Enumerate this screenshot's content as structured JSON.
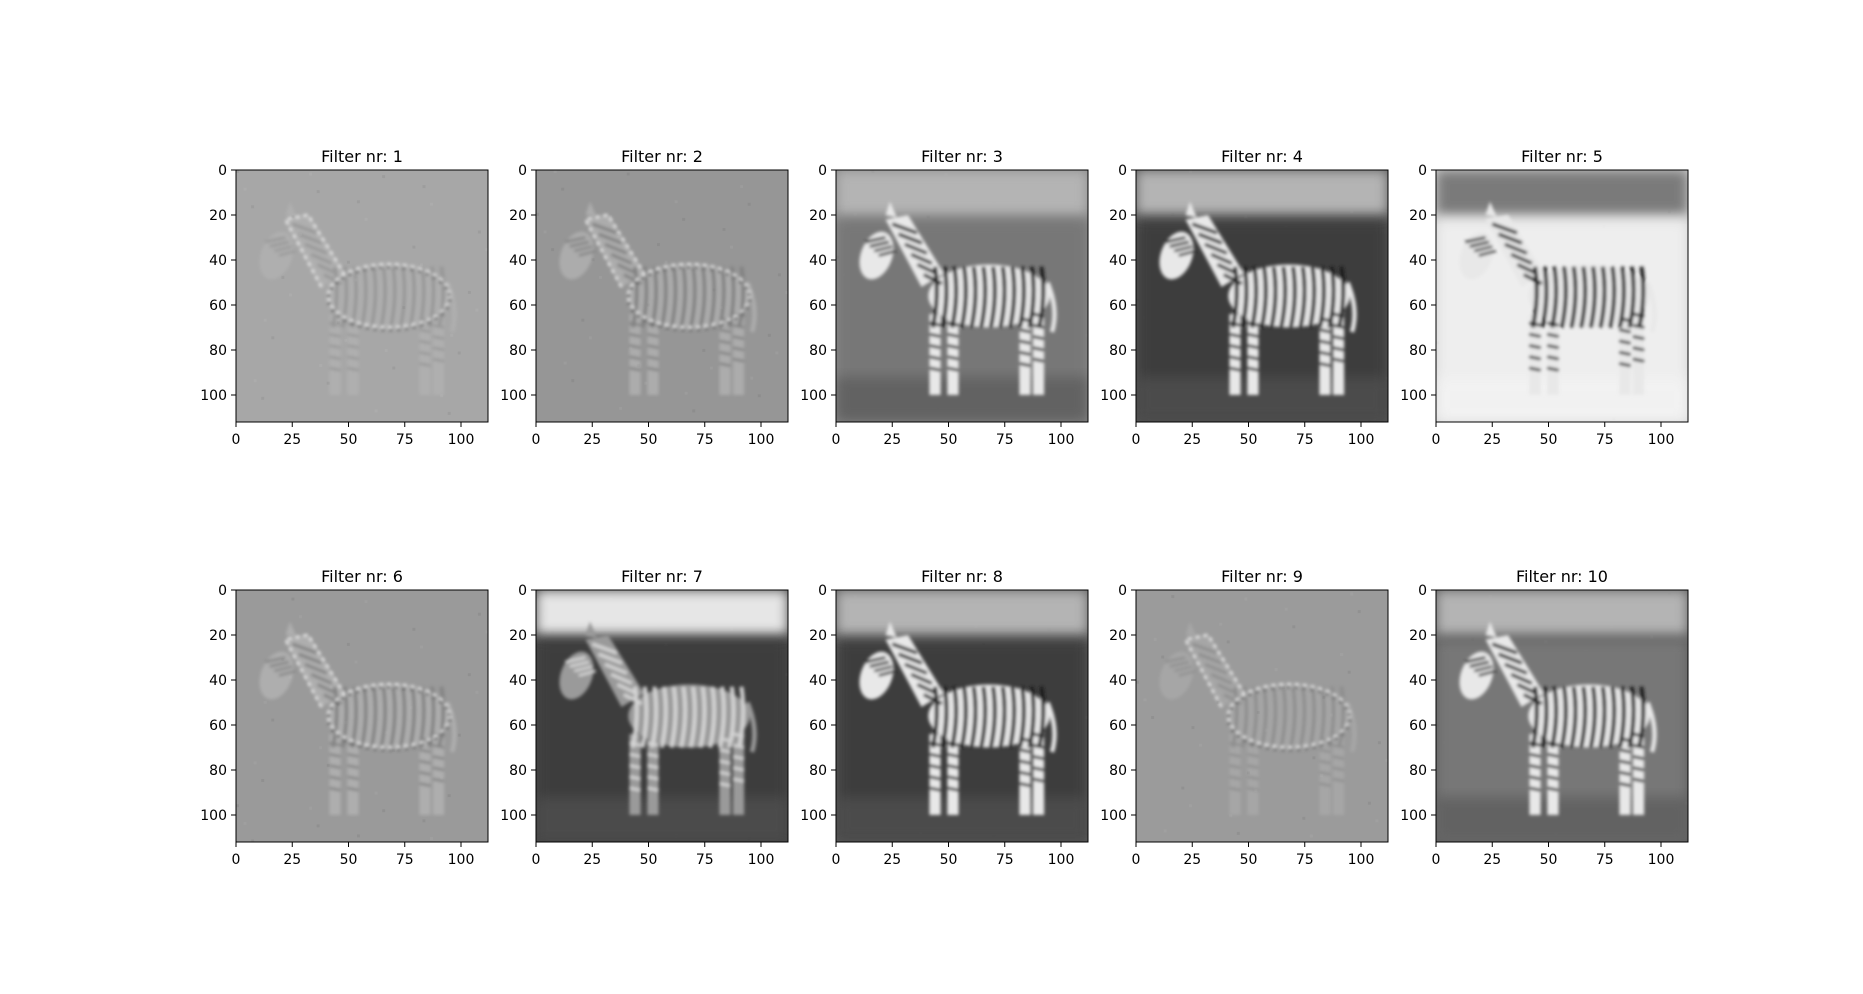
{
  "chart_data": {
    "type": "image-grid",
    "rows": 2,
    "cols": 5,
    "image_size": 112,
    "colormap": "gray",
    "xlim": [
      0,
      112
    ],
    "ylim": [
      112,
      0
    ],
    "x_ticks": [
      0,
      25,
      50,
      75,
      100
    ],
    "y_ticks": [
      0,
      20,
      40,
      60,
      80,
      100
    ],
    "panels": [
      {
        "title": "Filter nr: 1",
        "style": "edge",
        "bg": "#a7a7a7"
      },
      {
        "title": "Filter nr: 2",
        "style": "emboss",
        "bg": "#969696"
      },
      {
        "title": "Filter nr: 3",
        "style": "photo",
        "bg": "#8a8a8a"
      },
      {
        "title": "Filter nr: 4",
        "style": "photo-contrast",
        "bg": "#5a5a5a"
      },
      {
        "title": "Filter nr: 5",
        "style": "bright",
        "bg": "#d2d2d2"
      },
      {
        "title": "Filter nr: 6",
        "style": "emboss",
        "bg": "#9a9a9a"
      },
      {
        "title": "Filter nr: 7",
        "style": "inverted",
        "bg": "#4a4a4a"
      },
      {
        "title": "Filter nr: 8",
        "style": "photo-contrast",
        "bg": "#606060"
      },
      {
        "title": "Filter nr: 9",
        "style": "edge",
        "bg": "#9b9b9b"
      },
      {
        "title": "Filter nr: 10",
        "style": "photo",
        "bg": "#5e5e5e"
      }
    ]
  }
}
